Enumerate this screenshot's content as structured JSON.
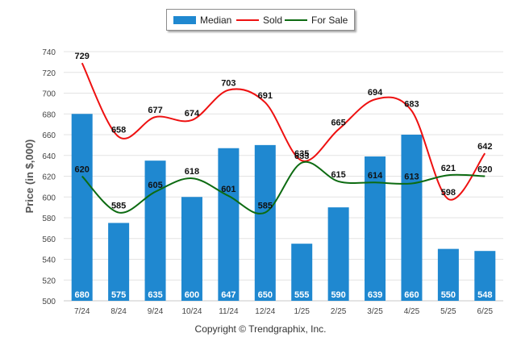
{
  "copyright": "Copyright © Trendgraphix, Inc.",
  "legend": [
    {
      "label": "Median",
      "color": "#1f88d0",
      "kind": "bar"
    },
    {
      "label": "Sold",
      "color": "#ee1111",
      "kind": "line"
    },
    {
      "label": "For Sale",
      "color": "#0d6b12",
      "kind": "line"
    }
  ],
  "chart_data": {
    "type": "bar",
    "ylabel": "Price (in $,000)",
    "xlabel": "",
    "ylim": [
      500,
      740
    ],
    "yticks": [
      500,
      520,
      540,
      560,
      580,
      600,
      620,
      640,
      660,
      680,
      700,
      720,
      740
    ],
    "grid": true,
    "legend_position": "top-center",
    "categories": [
      "7/24",
      "8/24",
      "9/24",
      "10/24",
      "11/24",
      "12/24",
      "1/25",
      "2/25",
      "3/25",
      "4/25",
      "5/25",
      "6/25"
    ],
    "series": [
      {
        "name": "Median",
        "type": "bar",
        "color": "#1f88d0",
        "values": [
          680,
          575,
          635,
          600,
          647,
          650,
          555,
          590,
          639,
          660,
          550,
          548
        ]
      },
      {
        "name": "Sold",
        "type": "line",
        "color": "#ee1111",
        "values": [
          729,
          658,
          677,
          674,
          703,
          691,
          635,
          665,
          694,
          683,
          598,
          642
        ]
      },
      {
        "name": "For Sale",
        "type": "line",
        "color": "#0d6b12",
        "values": [
          620,
          585,
          605,
          618,
          601,
          585,
          633,
          615,
          614,
          613,
          621,
          620
        ]
      }
    ]
  }
}
